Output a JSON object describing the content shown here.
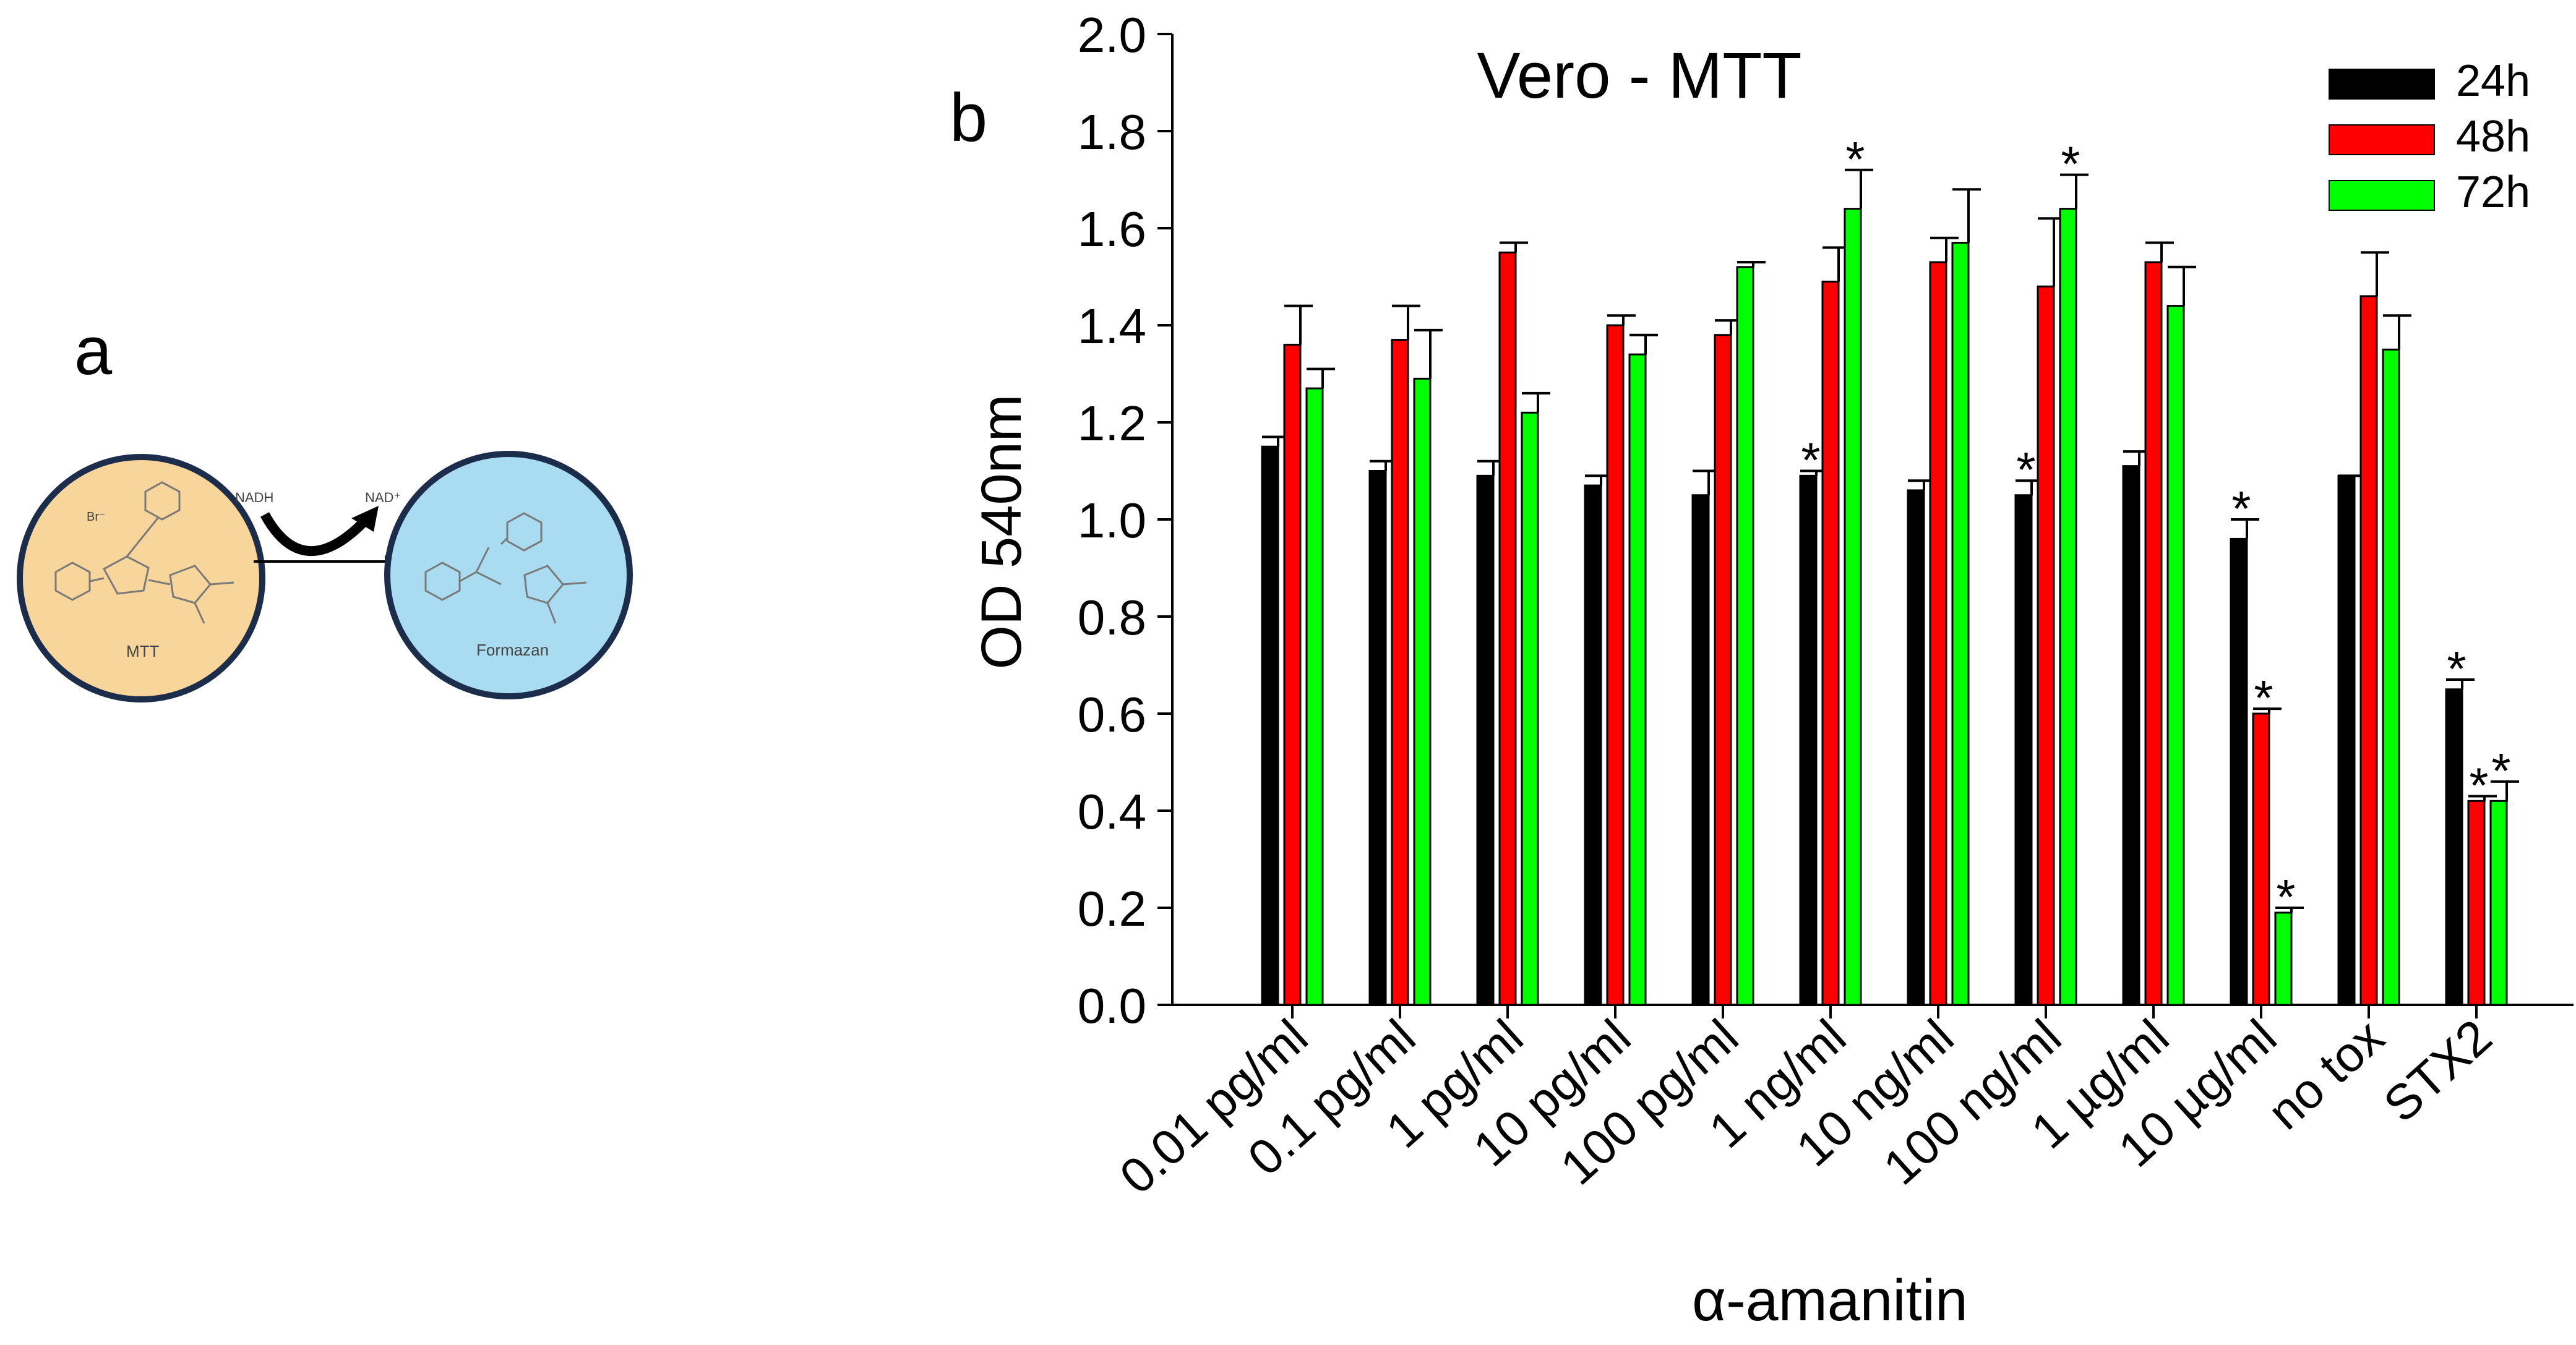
{
  "panel_a": {
    "label": "a",
    "mtt_label": "MTT",
    "formazan_label": "Formazan",
    "cofactor_in": "NADH",
    "cofactor_out": "NAD⁺",
    "counter_ion": "Br⁻",
    "colors": {
      "mtt_fill": "#f8d59a",
      "formazan_fill": "#a9dcf0",
      "ring": "#1b2d4a"
    }
  },
  "panel_b": {
    "label": "b"
  },
  "chart_data": {
    "type": "bar",
    "title": "Vero - MTT",
    "xlabel": "α-amanitin",
    "ylabel": "OD 540nm",
    "ylim": [
      0,
      2.0
    ],
    "yticks": [
      "0.0",
      "0.2",
      "0.4",
      "0.6",
      "0.8",
      "1.0",
      "1.2",
      "1.4",
      "1.6",
      "1.8",
      "2.0"
    ],
    "categories": [
      "0.01 pg/ml",
      "0.1 pg/ml",
      "1 pg/ml",
      "10 pg/ml",
      "100 pg/ml",
      "1 ng/ml",
      "10 ng/ml",
      "100 ng/ml",
      "1 µg/ml",
      "10 µg/ml",
      "no tox",
      "STX2"
    ],
    "legend_position": "top-right",
    "series": [
      {
        "name": "24h",
        "color": "#000000",
        "values": [
          1.15,
          1.1,
          1.09,
          1.07,
          1.05,
          1.09,
          1.06,
          1.05,
          1.11,
          0.96,
          1.09,
          0.65
        ],
        "errors": [
          0.02,
          0.02,
          0.03,
          0.02,
          0.05,
          0.01,
          0.02,
          0.03,
          0.03,
          0.04,
          0.0,
          0.02
        ],
        "significant": [
          false,
          false,
          false,
          false,
          false,
          true,
          false,
          true,
          false,
          true,
          false,
          true
        ]
      },
      {
        "name": "48h",
        "color": "#ff0000",
        "values": [
          1.36,
          1.37,
          1.55,
          1.4,
          1.38,
          1.49,
          1.53,
          1.48,
          1.53,
          0.6,
          1.46,
          0.42
        ],
        "errors": [
          0.08,
          0.07,
          0.02,
          0.02,
          0.03,
          0.07,
          0.05,
          0.14,
          0.04,
          0.01,
          0.09,
          0.01
        ],
        "significant": [
          false,
          false,
          false,
          false,
          false,
          false,
          false,
          false,
          false,
          true,
          false,
          true
        ]
      },
      {
        "name": "72h",
        "color": "#00ff00",
        "values": [
          1.27,
          1.29,
          1.22,
          1.34,
          1.52,
          1.64,
          1.57,
          1.64,
          1.44,
          0.19,
          1.35,
          0.42
        ],
        "errors": [
          0.04,
          0.1,
          0.04,
          0.04,
          0.01,
          0.08,
          0.11,
          0.07,
          0.08,
          0.01,
          0.07,
          0.04
        ],
        "significant": [
          false,
          false,
          false,
          false,
          false,
          true,
          false,
          true,
          false,
          true,
          false,
          true
        ]
      }
    ],
    "significance_marker": "*"
  }
}
